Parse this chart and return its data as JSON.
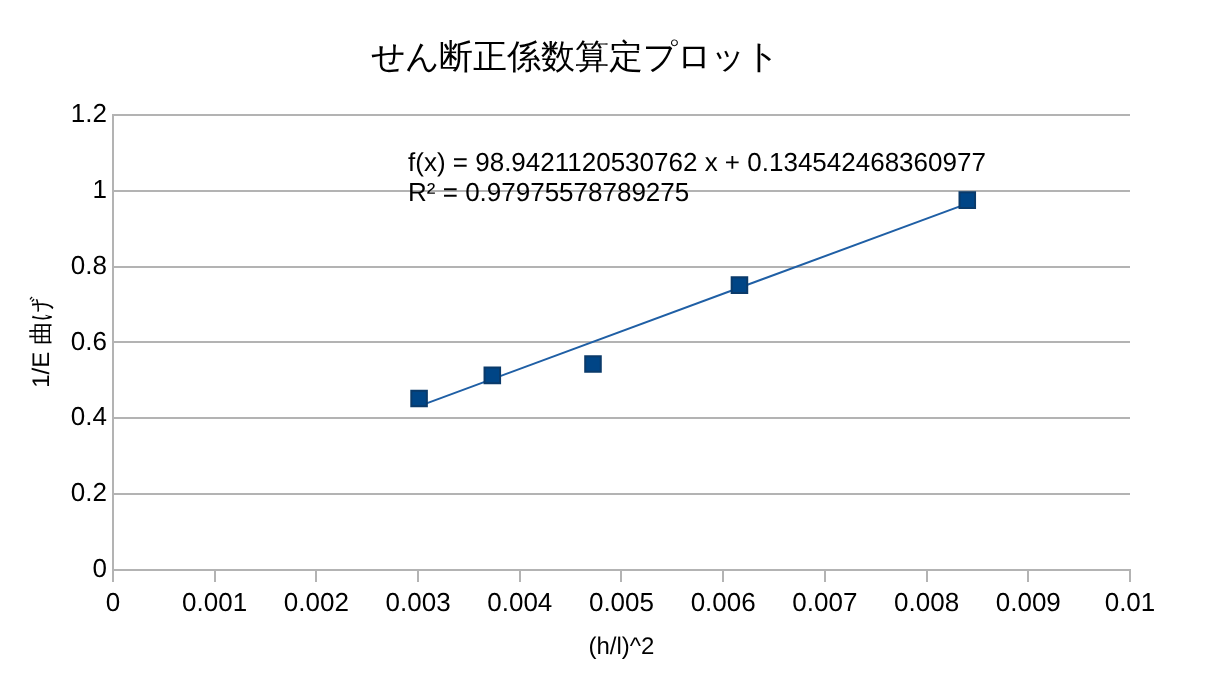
{
  "chart_data": {
    "type": "scatter",
    "title": "せん断正係数算定プロット",
    "xlabel": "(h/l)^2",
    "ylabel": "1/E 曲げ",
    "xlim": [
      0,
      0.01
    ],
    "xticks": [
      0,
      0.001,
      0.002,
      0.003,
      0.004,
      0.005,
      0.006,
      0.007,
      0.008,
      0.009,
      0.01
    ],
    "ylim": [
      0,
      1.2
    ],
    "yticks": [
      0,
      0.2,
      0.4,
      0.6,
      0.8,
      1,
      1.2
    ],
    "grid": "y",
    "legend": false,
    "series": [
      {
        "type": "scatter",
        "color": "#004586",
        "marker": "square",
        "x": [
          0.00301,
          0.00373,
          0.00472,
          0.00616,
          0.0084
        ],
        "values": [
          0.452,
          0.513,
          0.543,
          0.751,
          0.975
        ]
      },
      {
        "type": "line",
        "color": "#1f5fa5",
        "marker": "none",
        "x": [
          0.00301,
          0.0084
        ],
        "values": [
          0.432,
          0.966
        ]
      }
    ],
    "annotations": [
      {
        "text": "f(x) = 98.9421120530762 x + 0.134542468360977"
      },
      {
        "text": "R² = 0.97975578789275"
      }
    ]
  }
}
